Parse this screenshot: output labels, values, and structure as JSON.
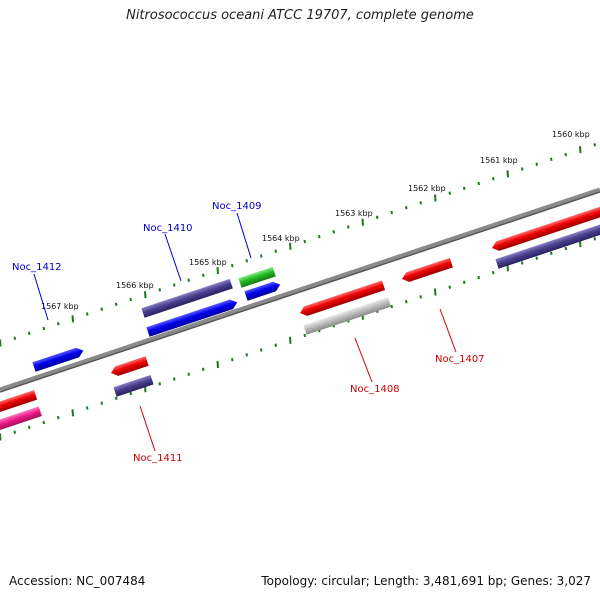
{
  "title": "Nitrosococcus oceani ATCC 19707, complete genome",
  "footer": {
    "accession": "Accession: NC_007484",
    "info": "Topology: circular; Length: 3,481,691 bp; Genes: 3,027"
  },
  "colors": {
    "backbone": "#7a7a7a",
    "tick": "#1a7a1a",
    "forward_label": "#0000cc",
    "reverse_label": "#cc0000"
  },
  "ruler_labels": [
    "1560 kbp",
    "1561 kbp",
    "1562 kbp",
    "1563 kbp",
    "1564 kbp",
    "1565 kbp",
    "1566 kbp",
    "1567 kbp"
  ],
  "gene_labels": [
    {
      "name": "Noc_1409",
      "strand": "forward"
    },
    {
      "name": "Noc_1410",
      "strand": "forward"
    },
    {
      "name": "Noc_1412",
      "strand": "forward"
    },
    {
      "name": "Noc_1408",
      "strand": "reverse"
    },
    {
      "name": "Noc_1407",
      "strand": "reverse"
    },
    {
      "name": "Noc_1411",
      "strand": "reverse"
    }
  ]
}
